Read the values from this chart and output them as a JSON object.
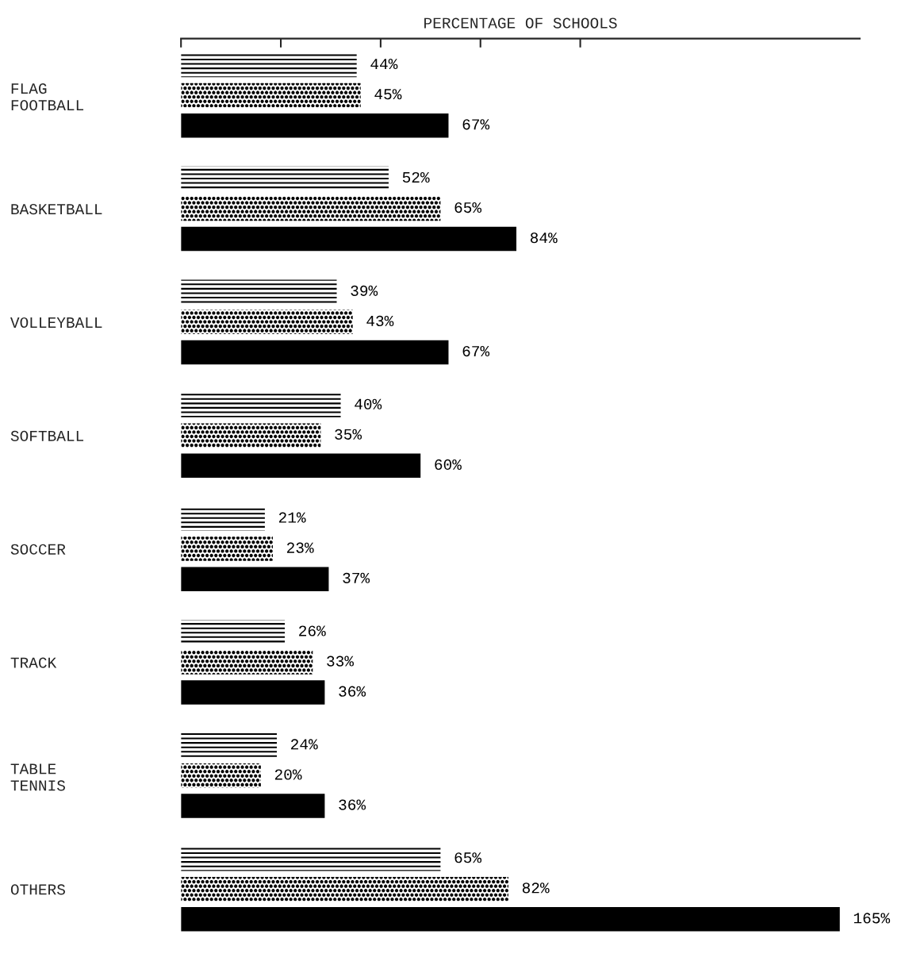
{
  "chart_data": {
    "type": "bar",
    "orientation": "horizontal",
    "xlabel": "PERCENTAGE OF SCHOOLS",
    "categories": [
      "FLAG\nFOOTBALL",
      "BASKETBALL",
      "VOLLEYBALL",
      "SOFTBALL",
      "SOCCER",
      "TRACK",
      "TABLE\nTENNIS",
      "OTHERS"
    ],
    "series": [
      {
        "color": "#000000",
        "values": [
          44,
          52,
          39,
          40,
          21,
          26,
          24,
          65
        ],
        "value_labels": [
          "44%",
          "52%",
          "39%",
          "40%",
          "21%",
          "26%",
          "24%",
          "65%"
        ]
      },
      {
        "color": "#000000",
        "values": [
          45,
          65,
          43,
          35,
          23,
          33,
          20,
          82
        ],
        "value_labels": [
          "45%",
          "65%",
          "43%",
          "35%",
          "23%",
          "33%",
          "20%",
          "82%"
        ]
      },
      {
        "color": "#000000",
        "values": [
          67,
          84,
          67,
          60,
          37,
          36,
          36,
          165
        ],
        "value_labels": [
          "67%",
          "84%",
          "67%",
          "60%",
          "37%",
          "36%",
          "36%",
          "165%"
        ]
      }
    ],
    "xlim": [
      0,
      170
    ],
    "xticks": [
      {
        "value": 0,
        "label": null
      },
      {
        "value": 25,
        "label": null
      },
      {
        "value": 50,
        "label": null
      },
      {
        "value": 75,
        "label": null
      },
      {
        "value": 100,
        "label": null
      }
    ],
    "grid": false
  }
}
